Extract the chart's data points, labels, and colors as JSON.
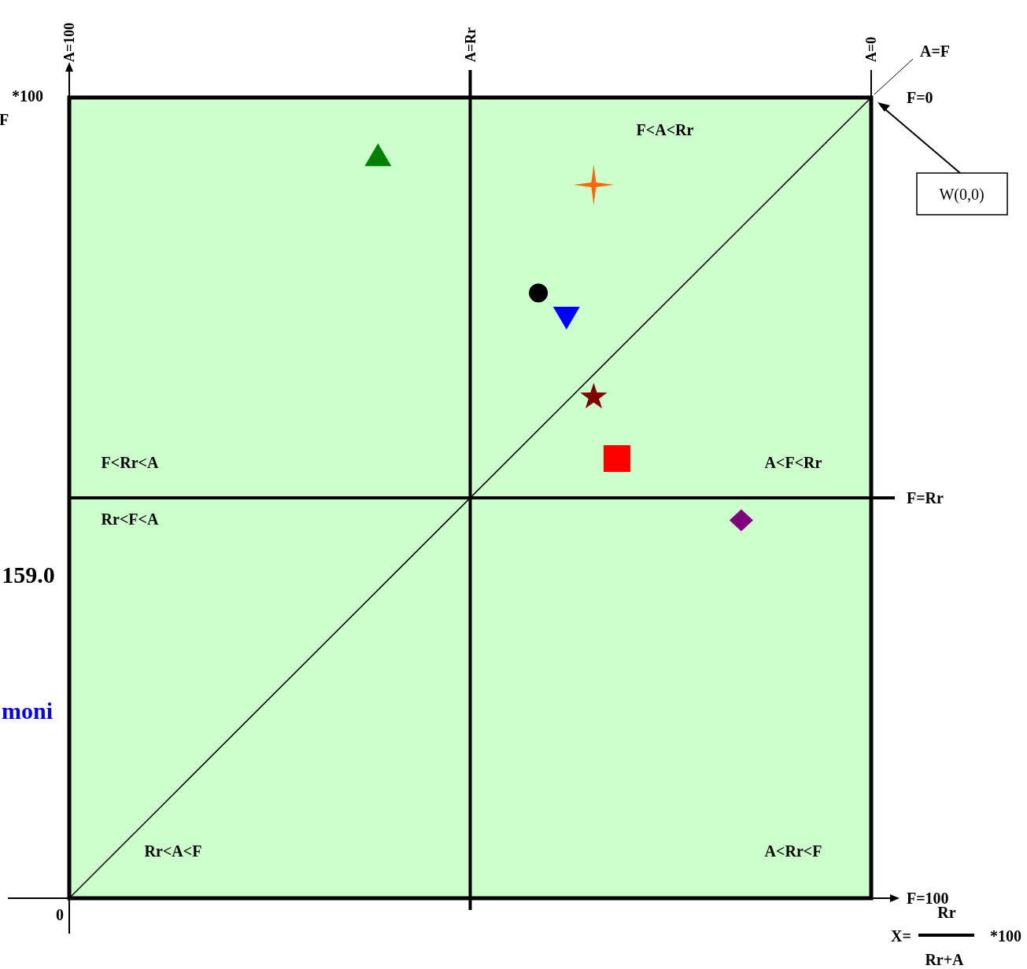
{
  "chart_data": {
    "type": "scatter",
    "xlim": [
      100,
      0
    ],
    "ylim": [
      100,
      0
    ],
    "xticks": [
      {
        "value": 100,
        "label": "A=100"
      },
      {
        "value": 0,
        "label": "A=0"
      }
    ],
    "yticks": [
      {
        "value": 100,
        "label": "F=100"
      },
      {
        "value": 0,
        "label": "F=0"
      }
    ],
    "ref_lines": [
      {
        "axis": "x",
        "value": 50,
        "label": "A=Rr",
        "color": "#000000"
      },
      {
        "axis": "y",
        "value": 50,
        "label": "F=Rr",
        "color": "#000000"
      }
    ],
    "series": [
      {
        "type": "line",
        "x": [
          100,
          0
        ],
        "values": [
          100,
          0
        ],
        "color": "#000000",
        "line_style": "solid"
      },
      {
        "x": [
          61.5
        ],
        "values": [
          7.3
        ],
        "color": "#008000",
        "marker": "triangle"
      },
      {
        "x": [
          34.6
        ],
        "values": [
          10.9
        ],
        "color": "#ff6600",
        "marker": "cross"
      },
      {
        "x": [
          41.5
        ],
        "values": [
          24.4
        ],
        "color": "#000000",
        "marker": "circle"
      },
      {
        "x": [
          38.0
        ],
        "values": [
          27.4
        ],
        "color": "#0000ff",
        "marker": "triangle-down"
      },
      {
        "x": [
          34.6
        ],
        "values": [
          37.4
        ],
        "color": "#800000",
        "marker": "star"
      },
      {
        "x": [
          31.7
        ],
        "values": [
          45.1
        ],
        "color": "#ff0000",
        "marker": "square"
      },
      {
        "x": [
          16.2
        ],
        "values": [
          52.8
        ],
        "color": "#800080",
        "marker": "diamond"
      }
    ],
    "annotations": [
      "F<A<Rr",
      "F<Rr<A",
      "A<F<Rr",
      "Rr<F<A",
      "Rr<A<F",
      "A<Rr<F",
      "A=F",
      "X=",
      "Rr",
      "Rr+A",
      "*100",
      "*100",
      "F",
      "159.0",
      "moni",
      "0",
      "W(0,0)"
    ]
  }
}
